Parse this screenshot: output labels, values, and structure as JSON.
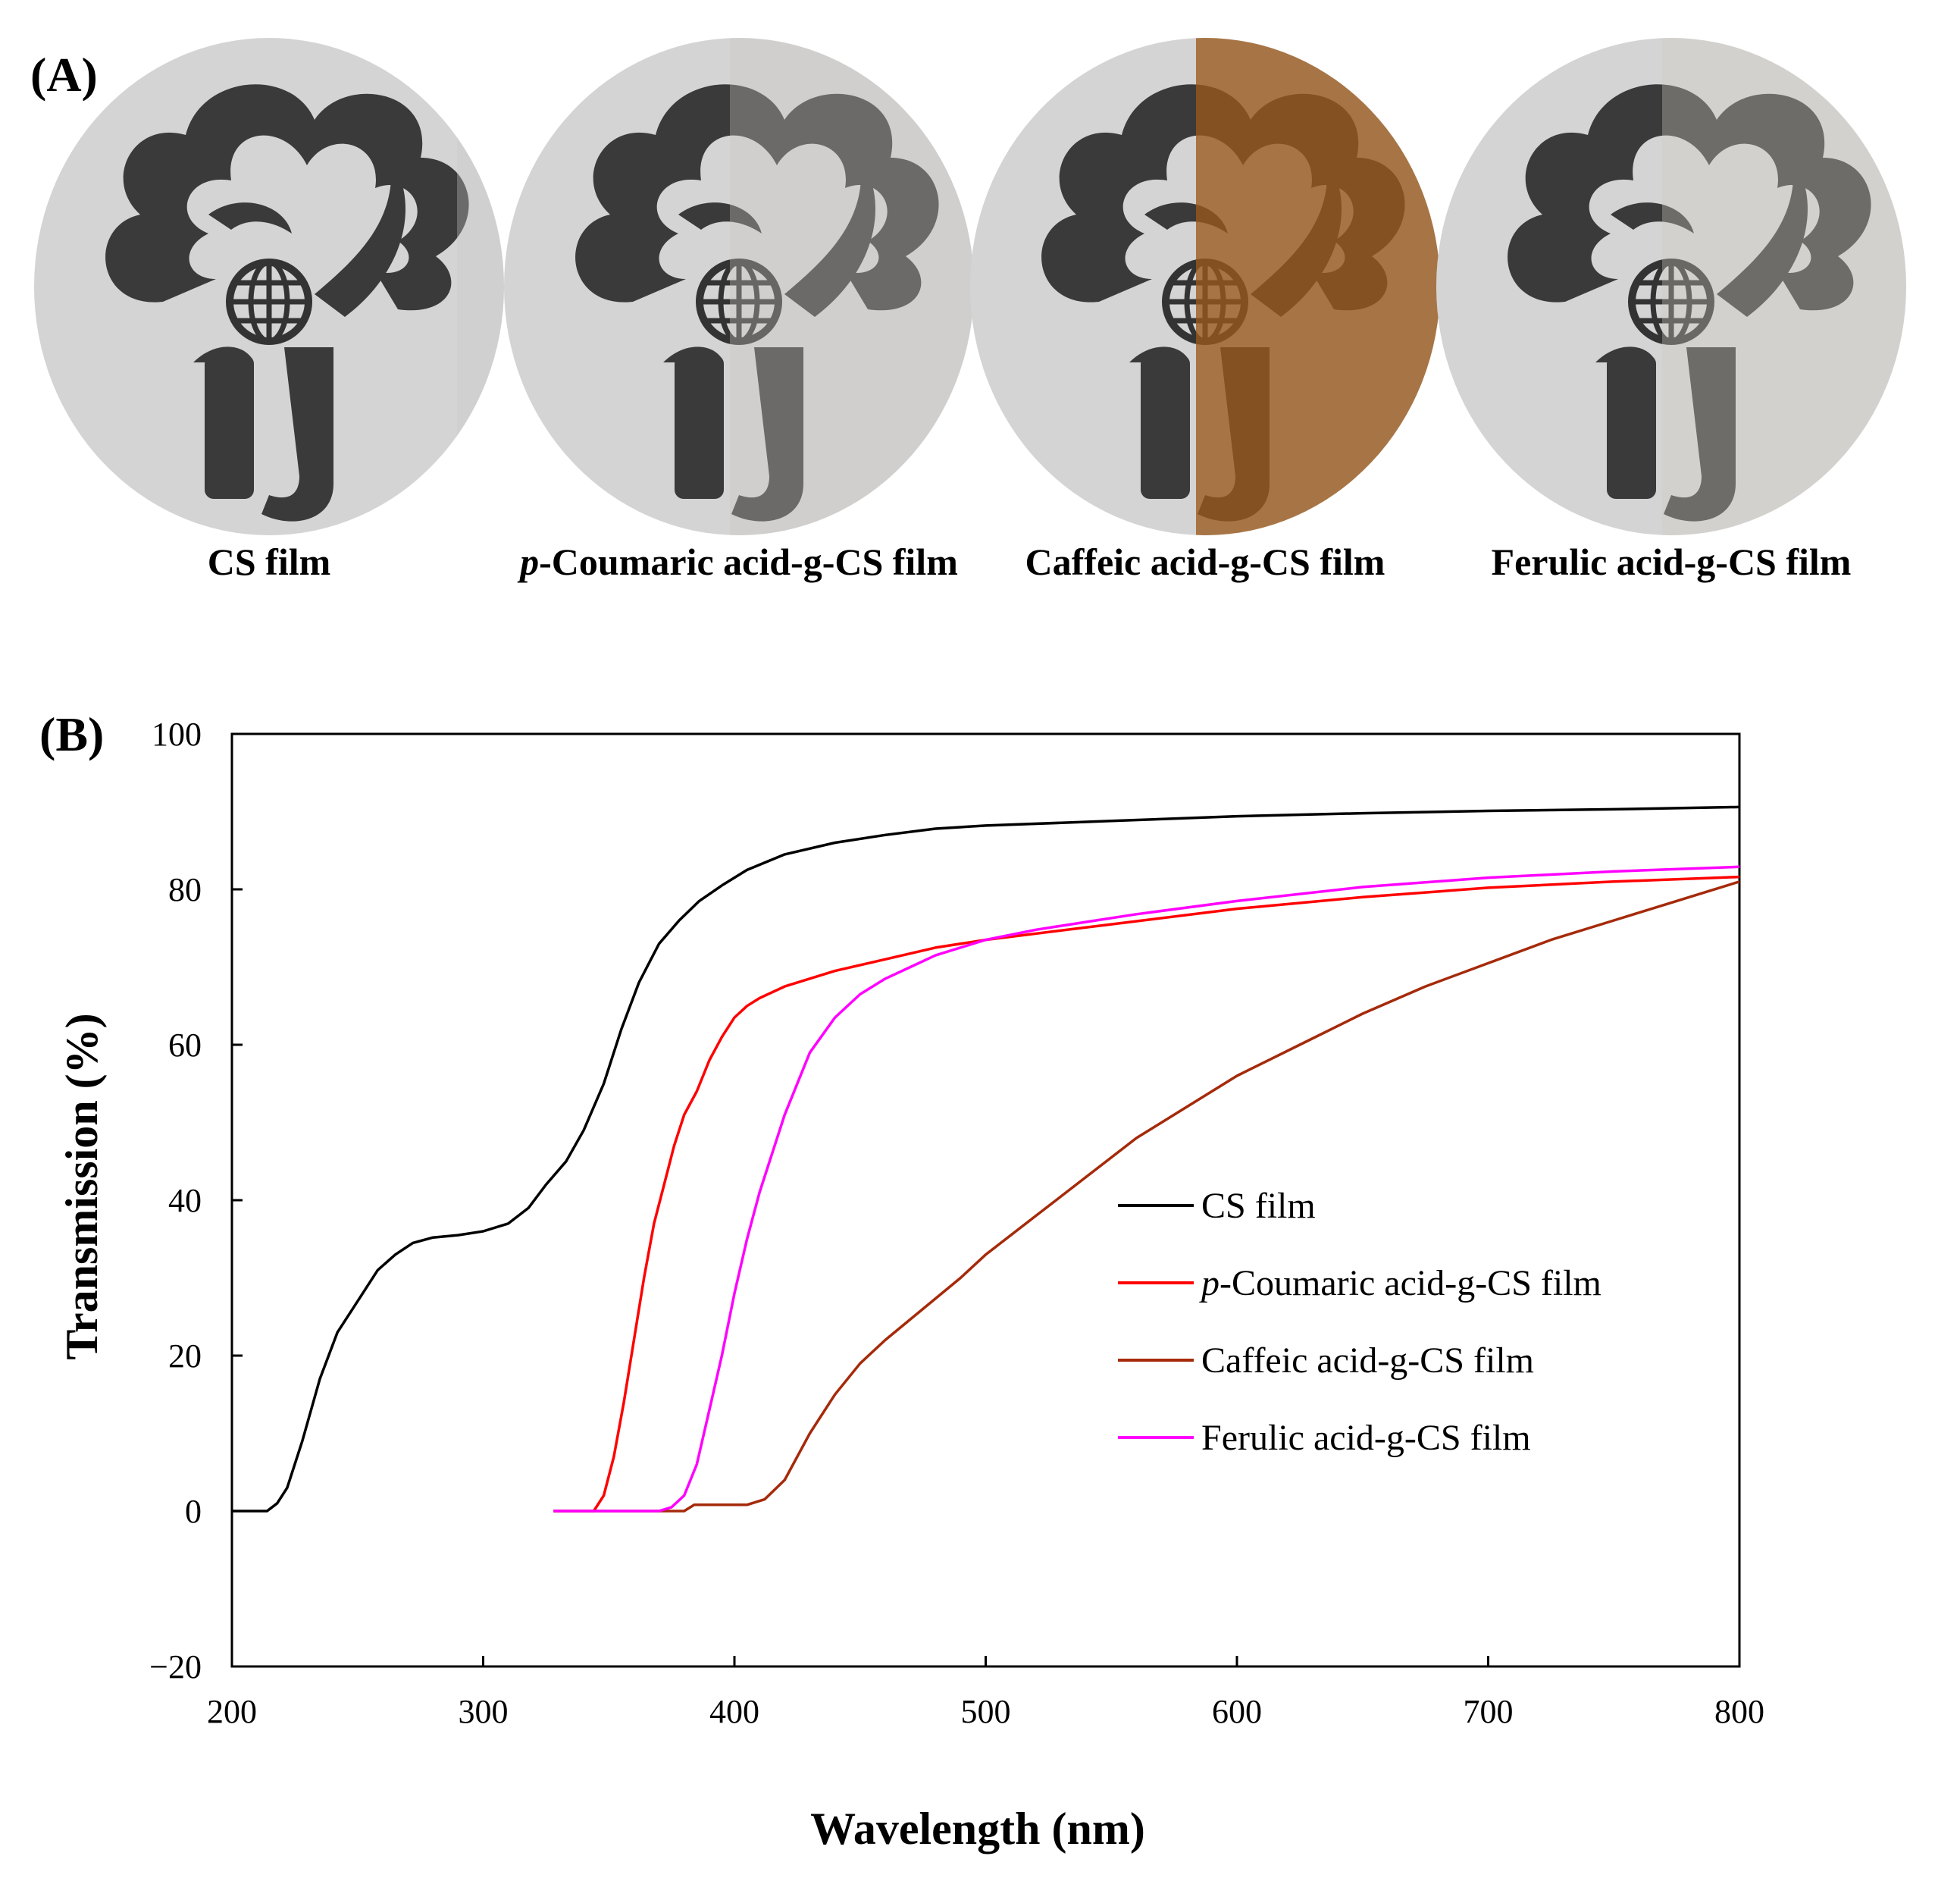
{
  "panel_a": {
    "label": "(A)",
    "films": [
      {
        "caption_prefix": "",
        "caption": "CS film",
        "tint": "#c8c8c8"
      },
      {
        "caption_prefix": "p",
        "caption": "-Coumaric acid-g-CS film",
        "tint": "#c9c6c1"
      },
      {
        "caption_prefix": "",
        "caption": "Caffeic acid-g-CS  film",
        "tint": "#9a5a1c"
      },
      {
        "caption_prefix": "",
        "caption": "Ferulic acid-g-CS film",
        "tint": "#d2ccbf"
      }
    ]
  },
  "panel_b": {
    "label": "(B)"
  },
  "chart_data": {
    "type": "line",
    "xlabel": "Wavelength (nm)",
    "ylabel": "Transmission (%)",
    "xlim": [
      200,
      800
    ],
    "ylim": [
      -20,
      100
    ],
    "xticks": [
      200,
      300,
      400,
      500,
      600,
      700,
      800
    ],
    "yticks": [
      -20,
      0,
      20,
      40,
      60,
      80,
      100
    ],
    "grid": false,
    "legend_position": "center-right",
    "series": [
      {
        "name": "CS film",
        "name_prefix": "",
        "color": "#000000",
        "x": [
          200,
          214,
          218,
          222,
          228,
          235,
          242,
          250,
          258,
          265,
          272,
          280,
          290,
          300,
          310,
          318,
          325,
          333,
          340,
          348,
          355,
          362,
          370,
          378,
          386,
          395,
          405,
          420,
          440,
          460,
          480,
          500,
          550,
          600,
          650,
          700,
          750,
          800
        ],
        "y": [
          0,
          0,
          1,
          3,
          9,
          17,
          23,
          27,
          31,
          33,
          34.5,
          35.2,
          35.5,
          36,
          37,
          39,
          42,
          45,
          49,
          55,
          62,
          68,
          73,
          76,
          78.5,
          80.5,
          82.5,
          84.5,
          86,
          87,
          87.8,
          88.2,
          88.8,
          89.4,
          89.8,
          90.1,
          90.3,
          90.6
        ]
      },
      {
        "name": "-Coumaric acid-g-CS film",
        "name_prefix": "p",
        "color": "#ff0000",
        "x": [
          328,
          344,
          348,
          352,
          356,
          360,
          364,
          368,
          372,
          376,
          380,
          385,
          390,
          395,
          400,
          405,
          410,
          420,
          440,
          460,
          480,
          500,
          550,
          600,
          650,
          700,
          750,
          800
        ],
        "y": [
          0,
          0,
          2,
          7,
          14,
          22,
          30,
          37,
          42,
          47,
          51,
          54,
          58,
          61,
          63.5,
          65,
          66,
          67.5,
          69.5,
          71,
          72.5,
          73.5,
          75.5,
          77.5,
          79,
          80.2,
          81,
          81.6
        ]
      },
      {
        "name": "Caffeic acid-g-CS film",
        "name_prefix": "",
        "color": "#a52a0a",
        "x": [
          328,
          380,
          384,
          405,
          412,
          420,
          430,
          440,
          450,
          460,
          475,
          490,
          500,
          520,
          540,
          560,
          580,
          600,
          625,
          650,
          675,
          700,
          725,
          750,
          775,
          800
        ],
        "y": [
          0,
          0,
          0.8,
          0.8,
          1.5,
          4,
          10,
          15,
          19,
          22,
          26,
          30,
          33,
          38,
          43,
          48,
          52,
          56,
          60,
          64,
          67.5,
          70.5,
          73.5,
          76,
          78.5,
          81
        ]
      },
      {
        "name": "Ferulic acid-g-CS film",
        "name_prefix": "",
        "color": "#ff00ff",
        "x": [
          328,
          370,
          375,
          380,
          385,
          390,
          395,
          400,
          405,
          410,
          415,
          420,
          425,
          430,
          440,
          450,
          460,
          470,
          480,
          500,
          520,
          540,
          560,
          600,
          650,
          700,
          750,
          800
        ],
        "y": [
          0,
          0,
          0.5,
          2,
          6,
          13,
          20,
          28,
          35,
          41,
          46,
          51,
          55,
          59,
          63.5,
          66.5,
          68.5,
          70,
          71.5,
          73.5,
          74.8,
          75.8,
          76.8,
          78.5,
          80.3,
          81.5,
          82.3,
          82.9
        ]
      }
    ]
  }
}
